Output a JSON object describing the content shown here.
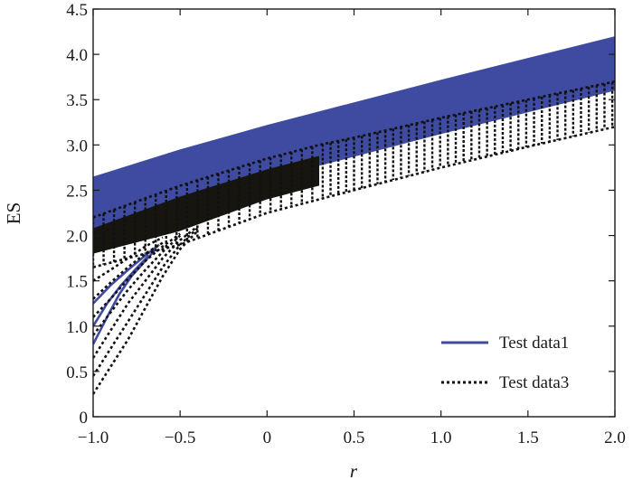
{
  "chart_data": {
    "type": "line",
    "title": "",
    "xlabel": "r",
    "ylabel": "ES",
    "xlim": [
      -1.0,
      2.0
    ],
    "ylim": [
      0,
      4.5
    ],
    "x_ticks": [
      -1.0,
      -0.5,
      0,
      0.5,
      1.0,
      1.5,
      2.0
    ],
    "x_tick_labels": [
      "−1.0",
      "−0.5",
      "0",
      "0.5",
      "1.0",
      "1.5",
      "2.0"
    ],
    "y_ticks": [
      0,
      0.5,
      1.0,
      1.5,
      2.0,
      2.5,
      3.0,
      3.5,
      4.0,
      4.5
    ],
    "y_tick_labels": [
      "0",
      "0.5",
      "1.0",
      "1.5",
      "2.0",
      "2.5",
      "3.0",
      "3.5",
      "4.0",
      "4.5"
    ],
    "grid": false,
    "legend_position": "bottom-right",
    "series": [
      {
        "name": "Test data1",
        "style": "solid",
        "color": "#3f4ba0",
        "band": {
          "x": [
            -1.0,
            -0.5,
            0,
            0.5,
            1.0,
            1.5,
            2.0
          ],
          "upper": [
            2.65,
            2.95,
            3.22,
            3.47,
            3.72,
            3.96,
            4.2
          ],
          "lower": [
            2.05,
            2.35,
            2.62,
            2.87,
            3.12,
            3.36,
            3.6
          ]
        },
        "low_lines": [
          {
            "x": [
              -1.0,
              -0.92,
              -0.85,
              -0.78,
              -0.7,
              -0.64
            ],
            "y": [
              0.8,
              1.1,
              1.35,
              1.55,
              1.72,
              1.85
            ]
          },
          {
            "x": [
              -1.0,
              -0.92,
              -0.84,
              -0.76,
              -0.68
            ],
            "y": [
              1.0,
              1.25,
              1.45,
              1.62,
              1.78
            ]
          },
          {
            "x": [
              -1.0,
              -0.9,
              -0.8,
              -0.7,
              -0.62
            ],
            "y": [
              1.25,
              1.45,
              1.62,
              1.78,
              1.9
            ]
          }
        ]
      },
      {
        "name": "Test data3",
        "style": "dotted",
        "color": "#111111",
        "band": {
          "x": [
            -1.0,
            -0.5,
            0,
            0.3,
            0.5,
            1.0,
            1.5,
            2.0
          ],
          "upper": [
            2.2,
            2.55,
            2.85,
            3.0,
            3.08,
            3.3,
            3.5,
            3.7
          ],
          "lower": [
            1.65,
            1.9,
            2.25,
            2.4,
            2.5,
            2.75,
            2.98,
            3.2
          ]
        },
        "dense_until_x": 0.3,
        "low_lines": [
          {
            "x": [
              -1.0,
              -0.9,
              -0.8,
              -0.7,
              -0.6,
              -0.5,
              -0.4
            ],
            "y": [
              0.25,
              0.55,
              0.85,
              1.2,
              1.55,
              1.85,
              2.05
            ]
          },
          {
            "x": [
              -1.0,
              -0.9,
              -0.8,
              -0.7,
              -0.6,
              -0.5,
              -0.4
            ],
            "y": [
              0.45,
              0.75,
              1.05,
              1.35,
              1.65,
              1.9,
              2.08
            ]
          },
          {
            "x": [
              -1.0,
              -0.9,
              -0.8,
              -0.7,
              -0.6,
              -0.5,
              -0.4
            ],
            "y": [
              0.65,
              0.95,
              1.25,
              1.5,
              1.75,
              1.95,
              2.1
            ]
          },
          {
            "x": [
              -1.0,
              -0.9,
              -0.8,
              -0.7,
              -0.6,
              -0.5
            ],
            "y": [
              0.9,
              1.15,
              1.4,
              1.62,
              1.82,
              2.0
            ]
          },
          {
            "x": [
              -1.0,
              -0.9,
              -0.8,
              -0.7,
              -0.6,
              -0.5
            ],
            "y": [
              1.1,
              1.3,
              1.52,
              1.72,
              1.88,
              2.02
            ]
          },
          {
            "x": [
              -1.0,
              -0.9,
              -0.8,
              -0.7,
              -0.6
            ],
            "y": [
              1.3,
              1.48,
              1.65,
              1.8,
              1.92
            ]
          },
          {
            "x": [
              -1.0,
              -0.9,
              -0.8,
              -0.7,
              -0.6
            ],
            "y": [
              1.5,
              1.62,
              1.75,
              1.88,
              1.98
            ]
          }
        ]
      }
    ]
  }
}
